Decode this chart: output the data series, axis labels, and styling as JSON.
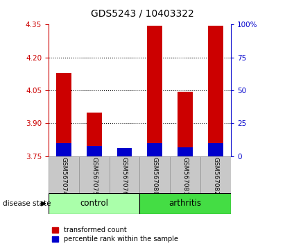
{
  "title": "GDS5243 / 10403322",
  "samples": [
    "GSM567074",
    "GSM567075",
    "GSM567076",
    "GSM567080",
    "GSM567081",
    "GSM567082"
  ],
  "red_tops": [
    4.13,
    3.95,
    3.775,
    4.344,
    4.045,
    4.344
  ],
  "blue_heights_pct": [
    10,
    8,
    6,
    10,
    7,
    10
  ],
  "bar_bottom": 3.75,
  "ylim_left": [
    3.75,
    4.35
  ],
  "ylim_right": [
    0,
    100
  ],
  "yticks_left": [
    3.75,
    3.9,
    4.05,
    4.2,
    4.35
  ],
  "yticks_right": [
    0,
    25,
    50,
    75,
    100
  ],
  "ytick_labels_right": [
    "0",
    "25",
    "50",
    "75",
    "100%"
  ],
  "group_label": "disease state",
  "red_color": "#CC0000",
  "blue_color": "#0000CC",
  "bar_width": 0.5,
  "title_fontsize": 10,
  "xticklabel_bg": "#C8C8C8",
  "ctrl_color": "#AAFFAA",
  "arth_color": "#44DD44"
}
